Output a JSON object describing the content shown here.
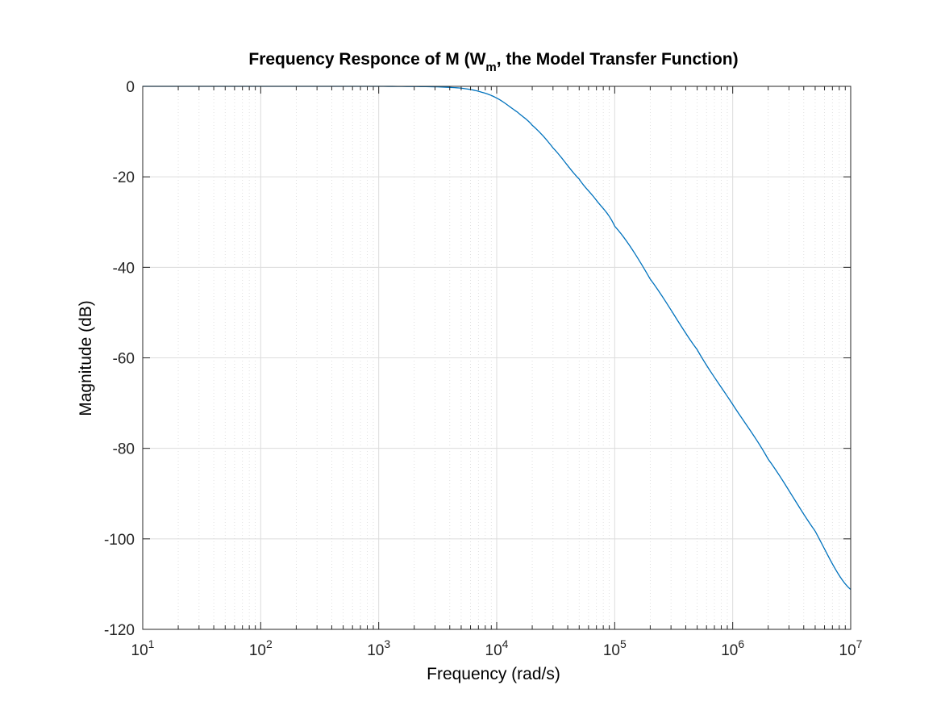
{
  "chart_data": {
    "type": "line",
    "title_main": "Frequency Responce of M (W",
    "title_sub": "m",
    "title_rest": ", the Model Transfer Function)",
    "xlabel": "Frequency  (rad/s)",
    "ylabel": "Magnitude (dB)",
    "x_scale": "log",
    "xlim": [
      10,
      10000000
    ],
    "ylim": [
      -120,
      0
    ],
    "x_ticks": [
      {
        "value": 10,
        "base": "10",
        "exp": "1"
      },
      {
        "value": 100,
        "base": "10",
        "exp": "2"
      },
      {
        "value": 1000,
        "base": "10",
        "exp": "3"
      },
      {
        "value": 10000,
        "base": "10",
        "exp": "4"
      },
      {
        "value": 100000,
        "base": "10",
        "exp": "5"
      },
      {
        "value": 1000000,
        "base": "10",
        "exp": "6"
      },
      {
        "value": 10000000,
        "base": "10",
        "exp": "7"
      }
    ],
    "y_ticks": [
      {
        "value": 0,
        "label": "0"
      },
      {
        "value": -20,
        "label": "-20"
      },
      {
        "value": -40,
        "label": "-40"
      },
      {
        "value": -60,
        "label": "-60"
      },
      {
        "value": -80,
        "label": "-80"
      },
      {
        "value": -100,
        "label": "-100"
      },
      {
        "value": -120,
        "label": "-120"
      }
    ],
    "grid": true,
    "minor_grid": true,
    "series": [
      {
        "color": "#0072bd",
        "x": [
          10,
          100,
          1000,
          3000,
          5000,
          7000,
          10000,
          15000,
          20000,
          30000,
          50000,
          70000,
          100000,
          200000,
          500000,
          1000000,
          2000000,
          5000000,
          10000000
        ],
        "y": [
          0,
          0,
          0,
          -0.1,
          -0.4,
          -1.1,
          -2.6,
          -5.7,
          -8.6,
          -13.6,
          -20.5,
          -25.2,
          -30.9,
          -42.6,
          -58.2,
          -70.3,
          -82.4,
          -98.3,
          -111.2
        ]
      }
    ]
  }
}
